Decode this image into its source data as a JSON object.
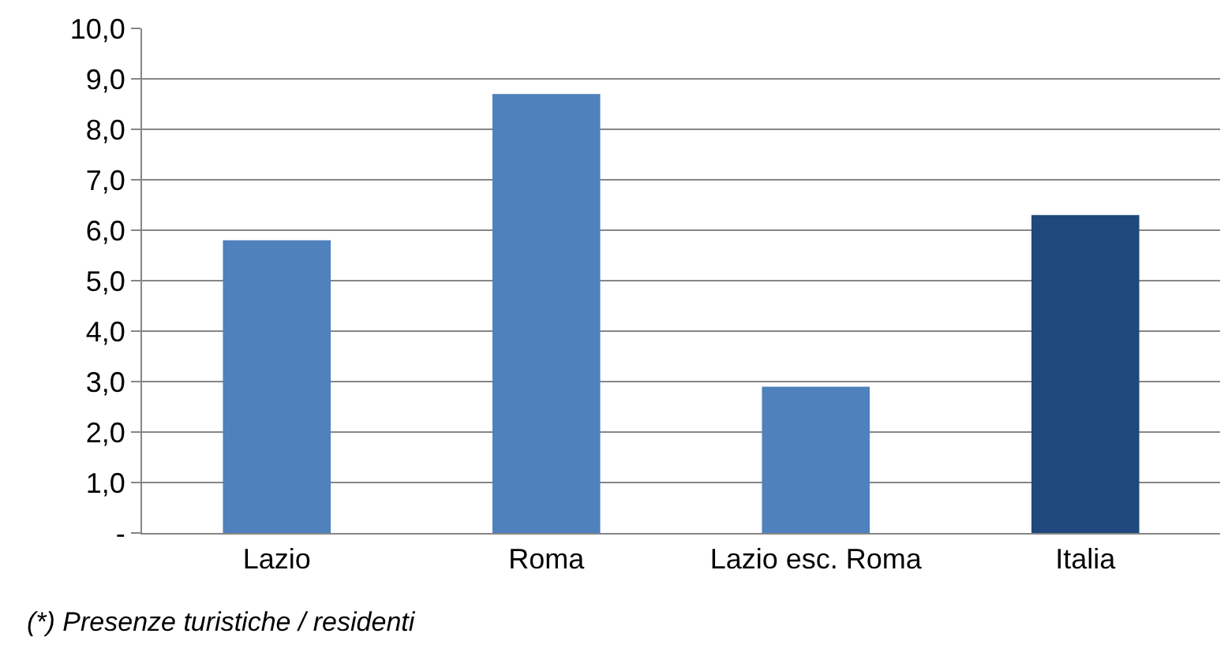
{
  "chart_data": {
    "type": "bar",
    "categories": [
      "Lazio",
      "Roma",
      "Lazio esc. Roma",
      "Italia"
    ],
    "values": [
      5.8,
      8.7,
      2.9,
      6.3
    ],
    "colors": [
      "#4f81bd",
      "#4f81bd",
      "#4f81bd",
      "#1f497d"
    ],
    "ylim": [
      0,
      10
    ],
    "yticks": [
      {
        "value": 0,
        "label": "-"
      },
      {
        "value": 1,
        "label": "1,0"
      },
      {
        "value": 2,
        "label": "2,0"
      },
      {
        "value": 3,
        "label": "3,0"
      },
      {
        "value": 4,
        "label": "4,0"
      },
      {
        "value": 5,
        "label": "5,0"
      },
      {
        "value": 6,
        "label": "6,0"
      },
      {
        "value": 7,
        "label": "7,0"
      },
      {
        "value": 8,
        "label": "8,0"
      },
      {
        "value": 9,
        "label": "9,0"
      },
      {
        "value": 10,
        "label": "10,0"
      }
    ],
    "grid": "y",
    "annotations": [
      "(*) Presenze turistiche / residenti"
    ]
  }
}
